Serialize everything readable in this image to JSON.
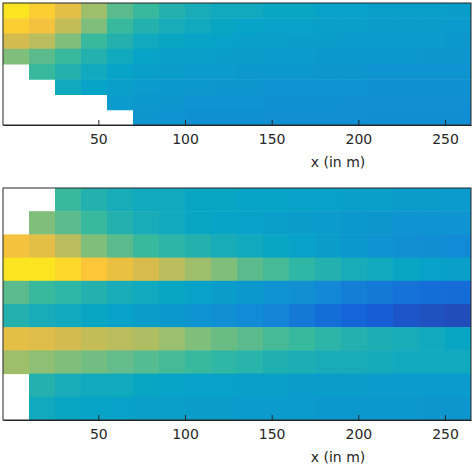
{
  "chart_data": [
    {
      "type": "heatmap",
      "x_label": "x (in m)",
      "xlim": [
        -5,
        265
      ],
      "xticks": [
        50,
        100,
        150,
        200,
        250
      ],
      "tick_labels": "x",
      "x_edges": [
        -5,
        10,
        25,
        40,
        55,
        70,
        85,
        100,
        115,
        130,
        145,
        160,
        175,
        190,
        205,
        220,
        235,
        250,
        265
      ],
      "color_range": [
        0,
        1
      ],
      "cells": [
        [
          0.95,
          0.9,
          0.8,
          0.65,
          0.55,
          0.5,
          0.45,
          0.42,
          0.4,
          0.4,
          0.38,
          0.38,
          0.36,
          0.36,
          0.35,
          0.35,
          0.35,
          0.34
        ],
        [
          0.9,
          0.85,
          0.72,
          0.6,
          0.5,
          0.45,
          0.42,
          0.4,
          0.38,
          0.37,
          0.36,
          0.36,
          0.35,
          0.35,
          0.34,
          0.34,
          0.34,
          0.33
        ],
        [
          0.75,
          0.7,
          0.6,
          0.5,
          0.45,
          0.4,
          0.38,
          0.37,
          0.36,
          0.35,
          0.35,
          0.34,
          0.34,
          0.33,
          0.33,
          0.33,
          0.33,
          0.32
        ],
        [
          0.6,
          0.55,
          0.5,
          0.45,
          0.4,
          0.37,
          0.35,
          0.35,
          0.34,
          0.34,
          0.33,
          0.33,
          0.32,
          0.32,
          0.32,
          0.32,
          0.31,
          0.31
        ],
        [
          null,
          0.5,
          0.45,
          0.4,
          0.37,
          0.35,
          0.34,
          0.33,
          0.33,
          0.32,
          0.32,
          0.32,
          0.31,
          0.31,
          0.3,
          0.3,
          0.3,
          0.3
        ],
        [
          null,
          null,
          0.4,
          0.37,
          0.35,
          0.33,
          0.32,
          0.32,
          0.31,
          0.31,
          0.3,
          0.3,
          0.3,
          0.3,
          0.29,
          0.29,
          0.29,
          0.29
        ],
        [
          null,
          null,
          null,
          null,
          0.33,
          0.32,
          0.31,
          0.3,
          0.3,
          0.3,
          0.29,
          0.29,
          0.29,
          0.28,
          0.28,
          0.28,
          0.28,
          0.28
        ],
        [
          null,
          null,
          null,
          null,
          null,
          0.31,
          0.3,
          0.29,
          0.29,
          0.29,
          0.28,
          0.28,
          0.28,
          0.28,
          0.27,
          0.27,
          0.27,
          0.27
        ]
      ]
    },
    {
      "type": "heatmap",
      "x_label": "x (in m)",
      "xlim": [
        -5,
        265
      ],
      "xticks": [
        50,
        100,
        150,
        200,
        250
      ],
      "tick_labels": "x",
      "x_edges": [
        -5,
        10,
        25,
        40,
        55,
        70,
        85,
        100,
        115,
        130,
        145,
        160,
        175,
        190,
        205,
        220,
        235,
        250,
        265
      ],
      "color_range": [
        0,
        1
      ],
      "cells": [
        [
          null,
          null,
          0.5,
          0.45,
          0.42,
          0.4,
          0.4,
          0.38,
          0.38,
          0.37,
          0.37,
          0.36,
          0.36,
          0.35,
          0.35,
          0.34,
          0.34,
          0.33
        ],
        [
          null,
          0.6,
          0.55,
          0.5,
          0.45,
          0.42,
          0.4,
          0.38,
          0.37,
          0.36,
          0.35,
          0.34,
          0.33,
          0.32,
          0.31,
          0.3,
          0.3,
          0.3
        ],
        [
          0.85,
          0.8,
          0.7,
          0.6,
          0.55,
          0.5,
          0.47,
          0.45,
          0.42,
          0.4,
          0.38,
          0.36,
          0.34,
          0.32,
          0.3,
          0.28,
          0.27,
          0.26
        ],
        [
          0.95,
          0.95,
          0.92,
          0.88,
          0.82,
          0.76,
          0.7,
          0.65,
          0.6,
          0.55,
          0.52,
          0.48,
          0.45,
          0.42,
          0.4,
          0.38,
          0.36,
          0.35
        ],
        [
          0.55,
          0.5,
          0.48,
          0.45,
          0.42,
          0.4,
          0.38,
          0.36,
          0.34,
          0.32,
          0.3,
          0.28,
          0.25,
          0.22,
          0.2,
          0.18,
          0.17,
          0.16
        ],
        [
          0.45,
          0.42,
          0.4,
          0.38,
          0.36,
          0.34,
          0.32,
          0.3,
          0.28,
          0.26,
          0.24,
          0.2,
          0.17,
          0.14,
          0.12,
          0.1,
          0.09,
          0.08
        ],
        [
          0.8,
          0.78,
          0.75,
          0.72,
          0.7,
          0.68,
          0.64,
          0.6,
          0.57,
          0.55,
          0.52,
          0.5,
          0.47,
          0.45,
          0.43,
          0.42,
          0.4,
          0.38
        ],
        [
          0.65,
          0.62,
          0.6,
          0.58,
          0.56,
          0.54,
          0.52,
          0.5,
          0.48,
          0.46,
          0.44,
          0.43,
          0.42,
          0.42,
          0.41,
          0.4,
          0.4,
          0.4
        ],
        [
          null,
          0.45,
          0.42,
          0.4,
          0.4,
          0.38,
          0.37,
          0.36,
          0.36,
          0.35,
          0.35,
          0.34,
          0.34,
          0.34,
          0.33,
          0.33,
          0.33,
          0.33
        ],
        [
          null,
          0.4,
          0.38,
          0.37,
          0.36,
          0.35,
          0.35,
          0.34,
          0.34,
          0.33,
          0.33,
          0.33,
          0.32,
          0.32,
          0.32,
          0.32,
          0.31,
          0.31
        ]
      ]
    }
  ]
}
